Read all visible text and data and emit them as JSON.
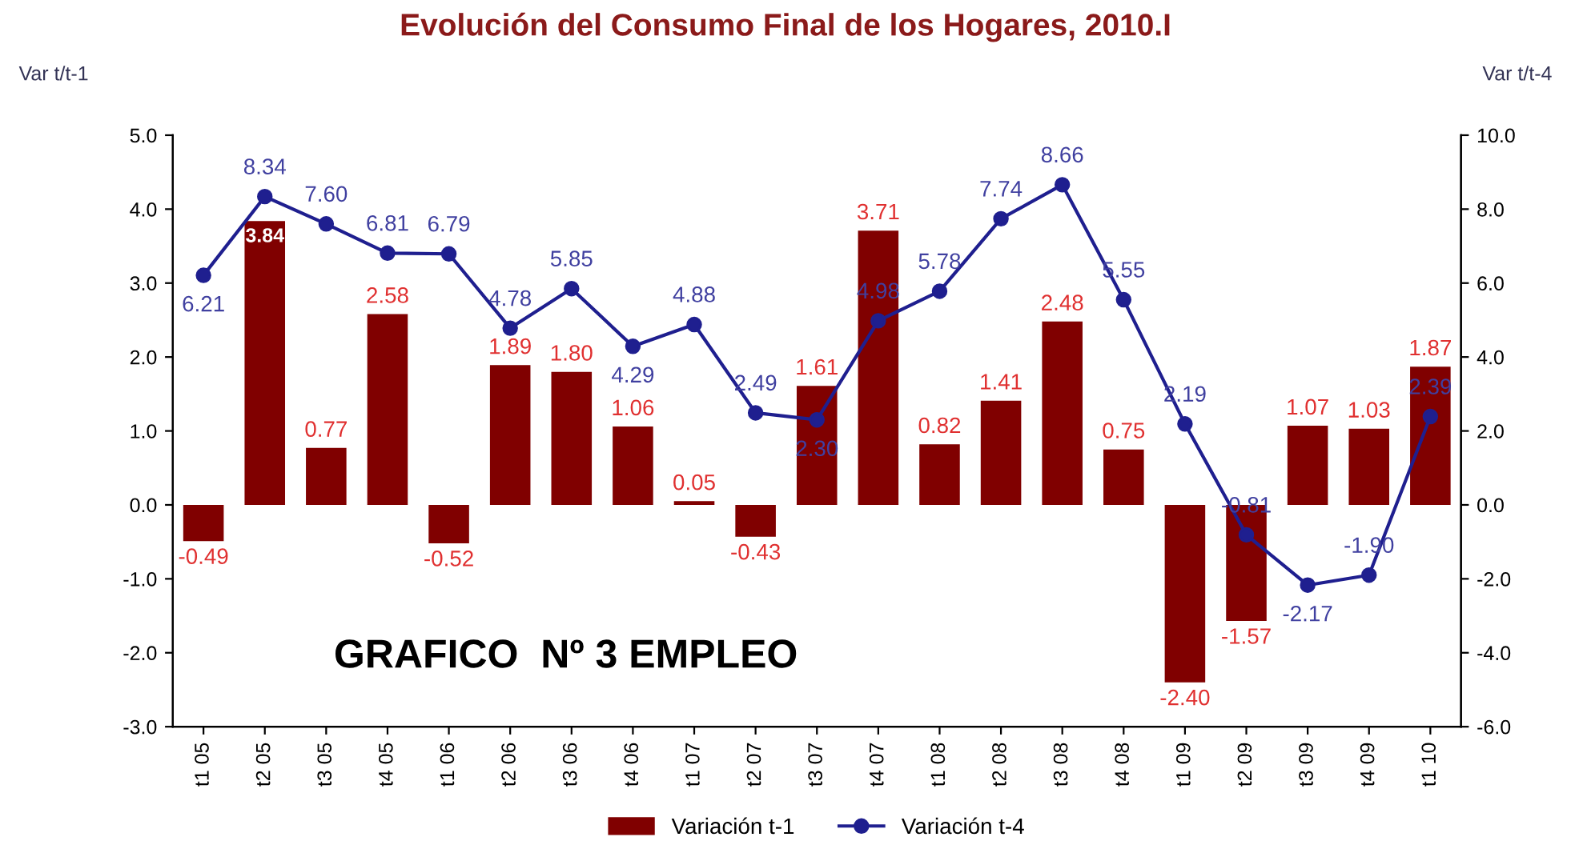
{
  "chart_data": {
    "type": "bar",
    "title": "Evolución del Consumo Final de los Hogares, 2010.I",
    "ylabel": "Var t/t-1",
    "y2label": "Var t/t-4",
    "categories": [
      "t1 05",
      "t2 05",
      "t3 05",
      "t4 05",
      "t1 06",
      "t2 06",
      "t3 06",
      "t4 06",
      "t1 07",
      "t2 07",
      "t3 07",
      "t4 07",
      "t1 08",
      "t2 08",
      "t3 08",
      "t4 08",
      "t1 09",
      "t2 09",
      "t3 09",
      "t4 09",
      "t1 10"
    ],
    "series": [
      {
        "name": "Variación t-1",
        "color": "#800000",
        "values": [
          -0.49,
          3.84,
          0.77,
          2.58,
          -0.52,
          1.89,
          1.8,
          1.06,
          0.05,
          -0.43,
          1.61,
          3.71,
          0.82,
          1.41,
          2.48,
          0.75,
          -2.4,
          -1.57,
          1.07,
          1.03,
          1.87
        ],
        "value_labels": [
          "-0.49",
          "3.84",
          "0.77",
          "2.58",
          "-0.52",
          "1.89",
          "1.80",
          "1.06",
          "0.05",
          "-0.43",
          "1.61",
          "3.71",
          "0.82",
          "1.41",
          "2.48",
          "0.75",
          "-2.40",
          "-1.57",
          "1.07",
          "1.03",
          "1.87"
        ]
      },
      {
        "name": "Variación t-4",
        "type": "line",
        "axis": "y2",
        "color": "#1f1f8f",
        "marker": "circle",
        "values": [
          6.21,
          8.34,
          7.6,
          6.81,
          6.79,
          4.78,
          5.85,
          4.29,
          4.88,
          2.49,
          2.3,
          4.98,
          5.78,
          7.74,
          8.66,
          5.55,
          2.19,
          -0.81,
          -2.17,
          -1.9,
          2.39
        ],
        "value_labels": [
          "6.21",
          "8.34",
          "7.60",
          "6.81",
          "6.79",
          "4.78",
          "5.85",
          "4.29",
          "4.88",
          "2.49",
          "2.30",
          "4.98",
          "5.78",
          "7.74",
          "8.66",
          "5.55",
          "2.19",
          "-0.81",
          "-2.17",
          "-1.90",
          "2.39"
        ]
      }
    ],
    "ylim": [
      -3.0,
      5.0
    ],
    "yticks": [
      {
        "value": -3,
        "label": "-3.0"
      },
      {
        "value": -2,
        "label": "-2.0"
      },
      {
        "value": -1,
        "label": "-1.0"
      },
      {
        "value": 0,
        "label": "0.0"
      },
      {
        "value": 1,
        "label": "1.0"
      },
      {
        "value": 2,
        "label": "2.0"
      },
      {
        "value": 3,
        "label": "3.0"
      },
      {
        "value": 4,
        "label": "4.0"
      },
      {
        "value": 5,
        "label": "5.0"
      }
    ],
    "y2lim": [
      -6.0,
      10.0
    ],
    "y2ticks": [
      {
        "value": -6,
        "label": "-6.0"
      },
      {
        "value": -4,
        "label": "-4.0"
      },
      {
        "value": -2,
        "label": "-2.0"
      },
      {
        "value": 0,
        "label": "0.0"
      },
      {
        "value": 2,
        "label": "2.0"
      },
      {
        "value": 4,
        "label": "4.0"
      },
      {
        "value": 6,
        "label": "6.0"
      },
      {
        "value": 8,
        "label": "8.0"
      },
      {
        "value": 10,
        "label": "10.0"
      }
    ],
    "annotations": [
      "GRAFICO  Nº 3 EMPLEO"
    ],
    "legend": "bottom",
    "grid": false
  }
}
